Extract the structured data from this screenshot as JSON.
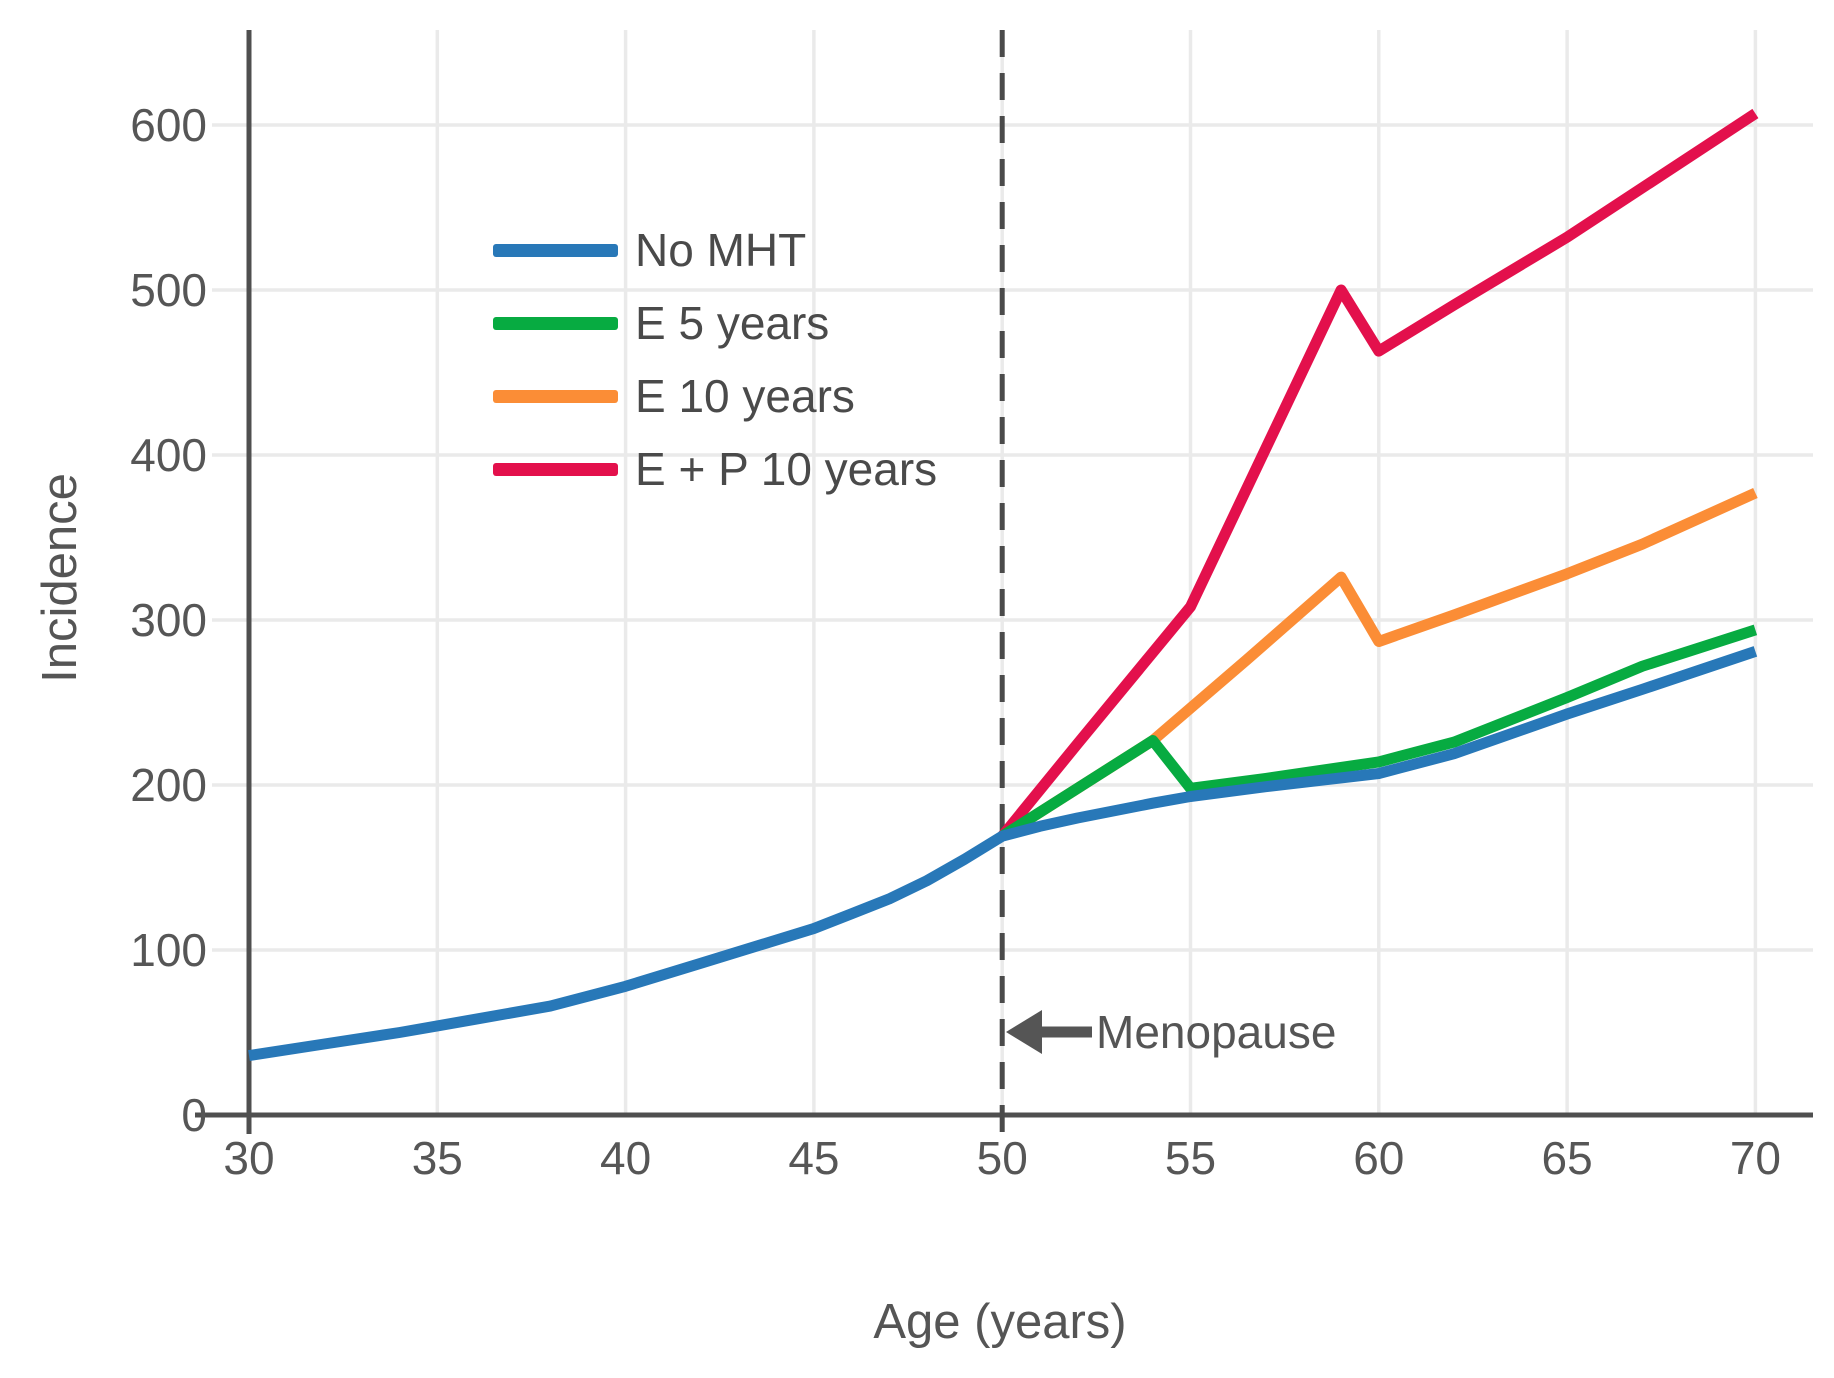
{
  "chart_data": {
    "type": "line",
    "title": "",
    "xlabel": "Age (years)",
    "ylabel": "Incidence",
    "x_ticks": [
      30,
      35,
      40,
      45,
      50,
      55,
      60,
      65,
      70
    ],
    "y_ticks": [
      0,
      100,
      200,
      300,
      400,
      500,
      600
    ],
    "xlim": [
      30,
      70
    ],
    "ylim": [
      0,
      655
    ],
    "grid": true,
    "legend_position": "upper-left-inside",
    "annotation": {
      "label": "Menopause",
      "x": 50,
      "y": 50,
      "arrow": "left"
    },
    "reference_line": {
      "x": 50,
      "style": "dashed",
      "meaning": "Menopause"
    },
    "series": [
      {
        "name": "No MHT",
        "color": "#2878b8",
        "points": [
          [
            30,
            36
          ],
          [
            32,
            43
          ],
          [
            34,
            50
          ],
          [
            35,
            54
          ],
          [
            36,
            58
          ],
          [
            38,
            66
          ],
          [
            40,
            78
          ],
          [
            42,
            92
          ],
          [
            44,
            106
          ],
          [
            45,
            113
          ],
          [
            46,
            122
          ],
          [
            47,
            131
          ],
          [
            48,
            142
          ],
          [
            49,
            155
          ],
          [
            50,
            169
          ],
          [
            51,
            175
          ],
          [
            52,
            180
          ],
          [
            54,
            189
          ],
          [
            55,
            193
          ],
          [
            57,
            199
          ],
          [
            60,
            207
          ],
          [
            62,
            219
          ],
          [
            65,
            243
          ],
          [
            67,
            258
          ],
          [
            70,
            281
          ]
        ]
      },
      {
        "name": "E 5 years",
        "color": "#07ab41",
        "points": [
          [
            50,
            169
          ],
          [
            54,
            227
          ],
          [
            55,
            198
          ],
          [
            57,
            204
          ],
          [
            60,
            214
          ],
          [
            62,
            226
          ],
          [
            65,
            253
          ],
          [
            67,
            272
          ],
          [
            70,
            294
          ]
        ]
      },
      {
        "name": "E 10 years",
        "color": "#fb8d36",
        "points": [
          [
            50,
            169
          ],
          [
            54,
            227
          ],
          [
            56.5,
            276
          ],
          [
            59,
            326
          ],
          [
            60,
            287
          ],
          [
            62,
            303
          ],
          [
            65,
            328
          ],
          [
            67,
            346
          ],
          [
            70,
            377
          ]
        ]
      },
      {
        "name": "E + P 10 years",
        "color": "#e3104c",
        "points": [
          [
            50,
            169
          ],
          [
            52,
            225
          ],
          [
            55,
            308
          ],
          [
            57,
            404
          ],
          [
            59,
            500
          ],
          [
            60,
            463
          ],
          [
            62,
            491
          ],
          [
            65,
            532
          ],
          [
            68,
            577
          ],
          [
            70,
            607
          ]
        ]
      }
    ]
  },
  "styles": {
    "grid_color": "#eaeaea",
    "axis_color": "#4f4f4f",
    "tick_text_color": "#565656",
    "dashed_line_color": "#4a4a4a",
    "annotation_color": "#555555"
  }
}
